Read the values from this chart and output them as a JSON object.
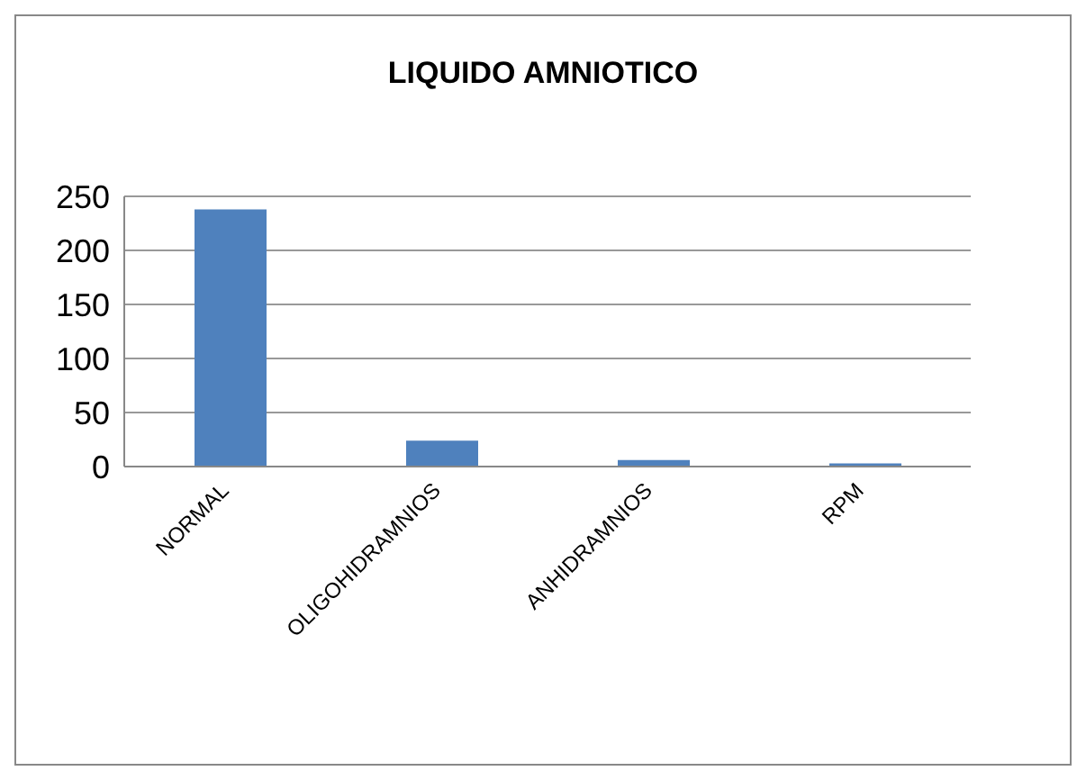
{
  "chart_data": {
    "type": "bar",
    "title": "LIQUIDO AMNIOTICO",
    "categories": [
      "NORMAL",
      "OLIGOHIDRAMNIOS",
      "ANHIDRAMNIOS",
      "RPM"
    ],
    "values": [
      238,
      24,
      6,
      3
    ],
    "color": "#4f81bd",
    "ylim": [
      0,
      250
    ],
    "yticks": [
      0,
      50,
      100,
      150,
      200,
      250
    ],
    "grid": "y"
  }
}
